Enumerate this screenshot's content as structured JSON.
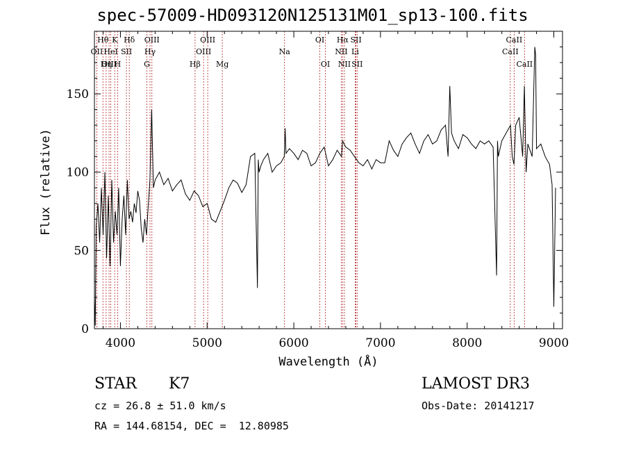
{
  "title": "spec-57009-HD093120N125131M01_sp13-100.fits",
  "info": {
    "class": "STAR",
    "subclass": "K7",
    "survey": "LAMOST DR3",
    "cz": "cz = 26.8 ± 51.0 km/s",
    "obs_date": "Obs-Date: 20141217",
    "radec": "RA = 144.68154, DEC =  12.80985"
  },
  "chart_data": {
    "type": "line",
    "title": "spec-57009-HD093120N125131M01_sp13-100.fits",
    "xlabel": "Wavelength (Å)",
    "ylabel": "Flux (relative)",
    "xlim": [
      3700,
      9100
    ],
    "ylim": [
      0,
      190
    ],
    "xticks": [
      4000,
      5000,
      6000,
      7000,
      8000,
      9000
    ],
    "yticks": [
      0,
      50,
      100,
      150
    ],
    "series": [
      {
        "name": "flux",
        "x": [
          3700,
          3710,
          3720,
          3740,
          3760,
          3780,
          3800,
          3820,
          3840,
          3860,
          3880,
          3900,
          3920,
          3940,
          3960,
          3980,
          4000,
          4020,
          4040,
          4060,
          4080,
          4100,
          4120,
          4140,
          4160,
          4180,
          4200,
          4220,
          4240,
          4260,
          4280,
          4300,
          4320,
          4340,
          4360,
          4380,
          4400,
          4450,
          4500,
          4550,
          4600,
          4650,
          4700,
          4750,
          4800,
          4850,
          4900,
          4950,
          5000,
          5050,
          5100,
          5150,
          5200,
          5250,
          5300,
          5350,
          5400,
          5450,
          5500,
          5550,
          5580,
          5590,
          5600,
          5620,
          5650,
          5700,
          5750,
          5800,
          5850,
          5890,
          5900,
          5910,
          5950,
          6000,
          6050,
          6100,
          6150,
          6200,
          6250,
          6300,
          6350,
          6400,
          6450,
          6500,
          6550,
          6563,
          6580,
          6600,
          6650,
          6700,
          6750,
          6800,
          6850,
          6900,
          6950,
          7000,
          7050,
          7100,
          7150,
          7200,
          7250,
          7300,
          7350,
          7400,
          7450,
          7500,
          7550,
          7600,
          7650,
          7700,
          7750,
          7780,
          7800,
          7820,
          7850,
          7900,
          7950,
          8000,
          8050,
          8100,
          8150,
          8200,
          8250,
          8300,
          8340,
          8350,
          8360,
          8400,
          8450,
          8500,
          8520,
          8540,
          8560,
          8600,
          8640,
          8660,
          8680,
          8700,
          8750,
          8780,
          8790,
          8800,
          8850,
          8900,
          8950,
          8980,
          9000,
          9020
        ],
        "y": [
          20,
          2,
          65,
          80,
          55,
          90,
          60,
          100,
          45,
          85,
          40,
          95,
          55,
          75,
          60,
          90,
          40,
          70,
          85,
          60,
          95,
          70,
          75,
          68,
          80,
          74,
          88,
          82,
          64,
          55,
          70,
          60,
          78,
          95,
          140,
          90,
          95,
          100,
          92,
          96,
          88,
          92,
          95,
          86,
          82,
          88,
          85,
          78,
          80,
          70,
          68,
          75,
          82,
          90,
          95,
          93,
          87,
          92,
          110,
          112,
          26,
          108,
          100,
          104,
          108,
          112,
          100,
          104,
          106,
          110,
          128,
          112,
          115,
          112,
          108,
          114,
          112,
          104,
          106,
          112,
          116,
          104,
          108,
          114,
          110,
          120,
          118,
          116,
          114,
          110,
          106,
          104,
          108,
          102,
          108,
          106,
          106,
          120,
          114,
          110,
          118,
          122,
          125,
          118,
          112,
          120,
          124,
          118,
          120,
          127,
          130,
          110,
          155,
          125,
          120,
          115,
          124,
          122,
          118,
          115,
          120,
          118,
          120,
          116,
          34,
          120,
          110,
          120,
          125,
          130,
          110,
          105,
          130,
          135,
          110,
          155,
          100,
          118,
          110,
          180,
          175,
          115,
          118,
          110,
          105,
          92,
          14,
          90
        ]
      }
    ],
    "line_markers": [
      {
        "label": "Hθ",
        "x": 3798,
        "row": 0
      },
      {
        "label": "OII",
        "x": 3727,
        "row": 1
      },
      {
        "label": "OIII",
        "x": 3869,
        "row": 2
      },
      {
        "label": "K",
        "x": 3934,
        "row": 0
      },
      {
        "label": "HeI",
        "x": 3889,
        "row": 1
      },
      {
        "label": "Hη",
        "x": 3835,
        "row": 2
      },
      {
        "label": "SII",
        "x": 4069,
        "row": 1
      },
      {
        "label": "H",
        "x": 3968,
        "row": 2
      },
      {
        "label": "Hδ",
        "x": 4102,
        "row": 0
      },
      {
        "label": "OIII",
        "x": 4363,
        "row": 0
      },
      {
        "label": "Hγ",
        "x": 4341,
        "row": 1
      },
      {
        "label": "G",
        "x": 4305,
        "row": 2
      },
      {
        "label": "OIII",
        "x": 5007,
        "row": 0
      },
      {
        "label": "OIII",
        "x": 4959,
        "row": 1
      },
      {
        "label": "Hβ",
        "x": 4861,
        "row": 2
      },
      {
        "label": "Mg",
        "x": 5175,
        "row": 2
      },
      {
        "label": "Na",
        "x": 5893,
        "row": 1
      },
      {
        "label": "OI",
        "x": 6300,
        "row": 0
      },
      {
        "label": "OI",
        "x": 6364,
        "row": 2
      },
      {
        "label": "Hα",
        "x": 6563,
        "row": 0
      },
      {
        "label": "NII",
        "x": 6548,
        "row": 1
      },
      {
        "label": "NII",
        "x": 6584,
        "row": 2
      },
      {
        "label": "SII",
        "x": 6717,
        "row": 0
      },
      {
        "label": "Li",
        "x": 6708,
        "row": 1
      },
      {
        "label": "SII",
        "x": 6731,
        "row": 2
      },
      {
        "label": "CaII",
        "x": 8542,
        "row": 0
      },
      {
        "label": "CaII",
        "x": 8498,
        "row": 1
      },
      {
        "label": "CaII",
        "x": 8662,
        "row": 2
      }
    ]
  }
}
